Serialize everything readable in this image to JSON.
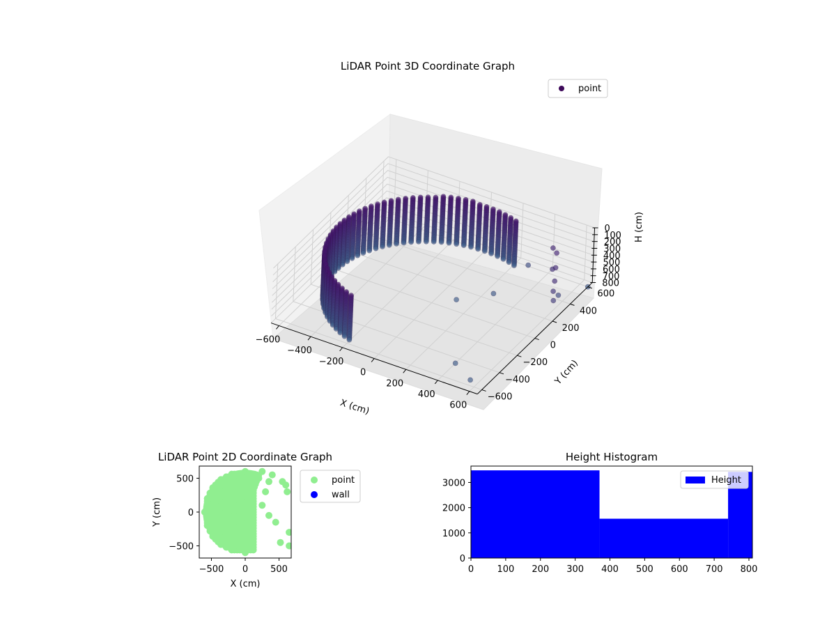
{
  "chart_data": [
    {
      "type": "scatter",
      "projection": "3d",
      "title": "LiDAR Point 3D Coordinate Graph",
      "xlabel": "X (cm)",
      "ylabel": "Y (cm)",
      "zlabel": "H (cm)",
      "xticks": [
        "−600",
        "−400",
        "−200",
        "0",
        "200",
        "400",
        "600"
      ],
      "yticks": [
        "−600",
        "−400",
        "−200",
        "0",
        "200",
        "400",
        "600"
      ],
      "zticks": [
        "0",
        "100",
        "200",
        "300",
        "400",
        "500",
        "600",
        "700",
        "800"
      ],
      "xlim": [
        -650,
        650
      ],
      "ylim": [
        -650,
        650
      ],
      "zlim": [
        800,
        0
      ],
      "z_axis_inverted": true,
      "grid": true,
      "legend": {
        "location": "upper-right",
        "entries": [
          {
            "label": "point",
            "color": "#3e0a5a"
          }
        ]
      },
      "colormap": "viridis",
      "series": [
        {
          "name": "point",
          "shape": "cylindrical wall of points",
          "radius": 600,
          "angle_range_deg": [
            70,
            250
          ],
          "z_range": [
            150,
            800
          ],
          "points": [
            {
              "x": 550,
              "y": 400,
              "z": 350
            },
            {
              "x": 520,
              "y": 420,
              "z": 420
            },
            {
              "x": 600,
              "y": 300,
              "z": 380
            },
            {
              "x": 620,
              "y": 250,
              "z": 450
            },
            {
              "x": 500,
              "y": 500,
              "z": 300
            },
            {
              "x": 450,
              "y": 550,
              "z": 330
            },
            {
              "x": 650,
              "y": 200,
              "z": 500
            },
            {
              "x": 600,
              "y": 350,
              "z": 650
            },
            {
              "x": 300,
              "y": 550,
              "z": 700
            },
            {
              "x": 650,
              "y": 600,
              "z": 800
            },
            {
              "x": 400,
              "y": -450,
              "z": 800
            },
            {
              "x": 550,
              "y": -550,
              "z": 800
            },
            {
              "x": 250,
              "y": 250,
              "z": 780
            },
            {
              "x": 100,
              "y": 100,
              "z": 800
            }
          ]
        }
      ]
    },
    {
      "type": "scatter",
      "title": "LiDAR Point 2D Coordinate Graph",
      "xlabel": "X (cm)",
      "ylabel": "Y (cm)",
      "xticks": [
        "−500",
        "0",
        "500"
      ],
      "yticks": [
        "−500",
        "0",
        "500"
      ],
      "xlim": [
        -680,
        680
      ],
      "ylim": [
        -680,
        680
      ],
      "legend": {
        "location": "outside-right",
        "entries": [
          {
            "label": "point",
            "color": "#90ee90"
          },
          {
            "label": "wall",
            "color": "#0000ff"
          }
        ]
      },
      "series": [
        {
          "name": "point",
          "color": "#90ee90",
          "radius": 600,
          "angle_range_deg": [
            70,
            250
          ],
          "points": [
            {
              "x": 250,
              "y": 600
            },
            {
              "x": 200,
              "y": 500
            },
            {
              "x": 350,
              "y": 450
            },
            {
              "x": 300,
              "y": 300
            },
            {
              "x": 250,
              "y": 100
            },
            {
              "x": 350,
              "y": -50
            },
            {
              "x": 450,
              "y": -150
            },
            {
              "x": 400,
              "y": 550
            },
            {
              "x": 550,
              "y": 450
            },
            {
              "x": 620,
              "y": 300
            },
            {
              "x": 650,
              "y": -300
            },
            {
              "x": 520,
              "y": -450
            },
            {
              "x": 650,
              "y": -500
            },
            {
              "x": 600,
              "y": 400
            }
          ]
        },
        {
          "name": "wall",
          "color": "#0000ff",
          "points": []
        }
      ]
    },
    {
      "type": "bar",
      "subtype": "histogram",
      "title": "Height Histogram",
      "xticks": [
        "0",
        "100",
        "200",
        "300",
        "400",
        "500",
        "600",
        "700",
        "800"
      ],
      "yticks": [
        "0",
        "1000",
        "2000",
        "3000"
      ],
      "xlim": [
        0,
        810
      ],
      "ylim": [
        0,
        3650
      ],
      "legend": {
        "location": "upper-right",
        "entries": [
          {
            "label": "Height",
            "color": "#0000ff"
          }
        ]
      },
      "series": [
        {
          "name": "Height",
          "color": "#0000ff",
          "bins": [
            {
              "from": 0,
              "to": 370,
              "count": 3480
            },
            {
              "from": 370,
              "to": 740,
              "count": 1560
            },
            {
              "from": 740,
              "to": 810,
              "count": 3420
            }
          ]
        }
      ]
    }
  ]
}
